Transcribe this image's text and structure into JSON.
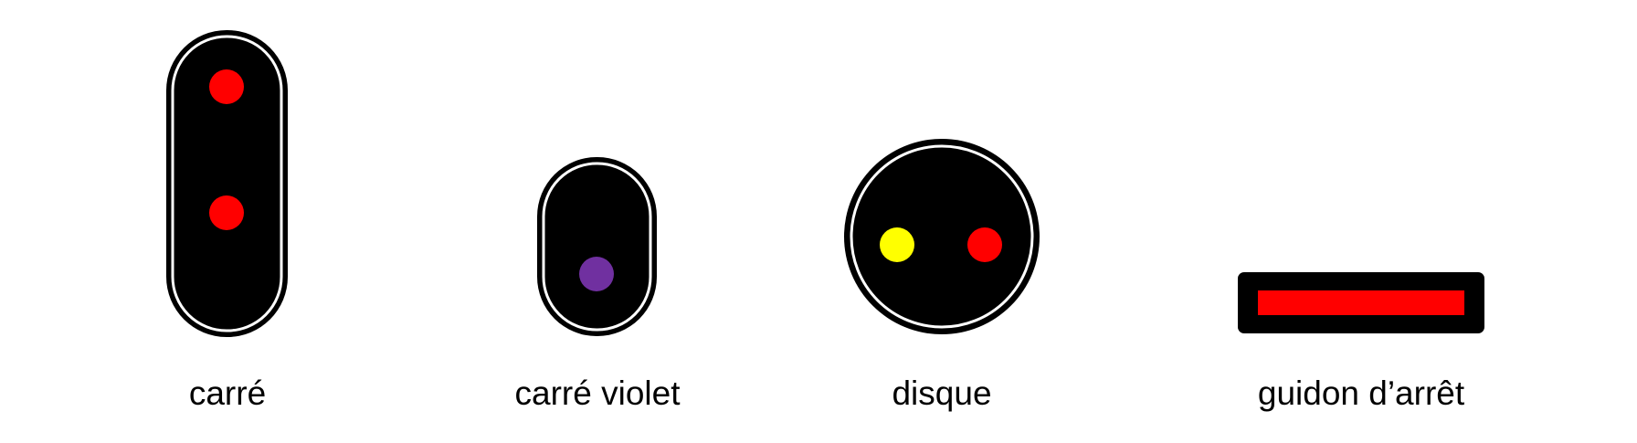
{
  "signals": [
    {
      "label": "carré",
      "shape": "vertical-rounded-panel",
      "lights": [
        "red",
        "red"
      ]
    },
    {
      "label": "carré violet",
      "shape": "vertical-rounded-panel",
      "lights": [
        "violet"
      ]
    },
    {
      "label": "disque",
      "shape": "round-panel",
      "lights": [
        "yellow",
        "red"
      ]
    },
    {
      "label": "guidon d’arrêt",
      "shape": "horizontal-bar",
      "lights": [
        "red-bar"
      ]
    }
  ],
  "colors": {
    "panel": "#000000",
    "outline": "#ffffff",
    "red": "#ff0000",
    "violet": "#7030a0",
    "yellow": "#ffff00"
  }
}
